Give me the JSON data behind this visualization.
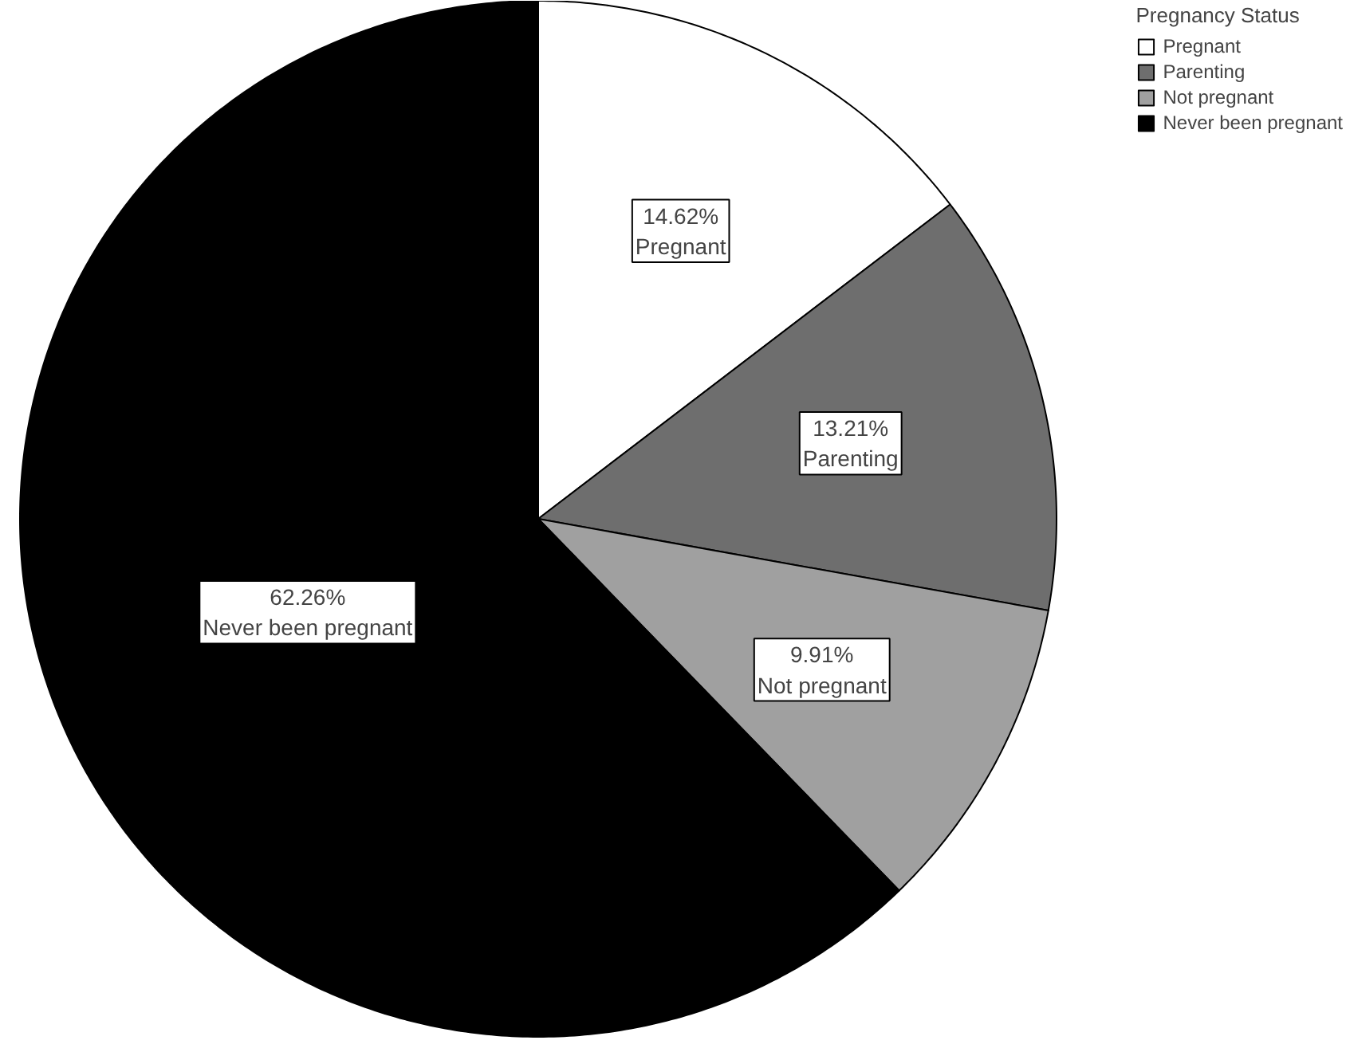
{
  "chart_data": {
    "type": "pie",
    "legend_title": "Pregnancy Status",
    "categories": [
      "Pregnant",
      "Parenting",
      "Not pregnant",
      "Never been pregnant"
    ],
    "values": [
      14.62,
      13.21,
      9.91,
      62.26
    ],
    "colors": [
      "#ffffff",
      "#6e6e6e",
      "#a0a0a0",
      "#000000"
    ],
    "value_labels": [
      "14.62%",
      "13.21%",
      "9.91%",
      "62.26%"
    ],
    "legend": "top right"
  }
}
